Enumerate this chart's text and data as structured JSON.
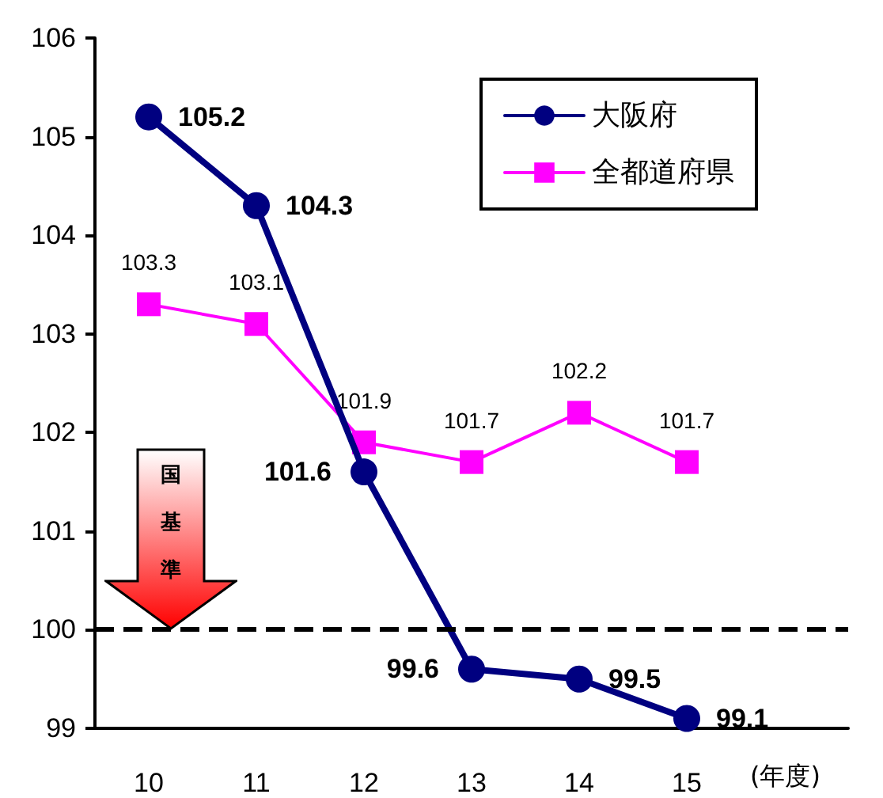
{
  "chart_data": {
    "type": "line",
    "categories": [
      "10",
      "11",
      "12",
      "13",
      "14",
      "15",
      null
    ],
    "xlabel": "(年度)",
    "series": [
      {
        "name": "大阪府",
        "color": "#000080",
        "marker": "circle",
        "values": [
          105.2,
          104.3,
          101.6,
          99.6,
          99.5,
          99.1,
          null
        ]
      },
      {
        "name": "全都道府県",
        "color": "#ff00ff",
        "marker": "square",
        "values": [
          103.3,
          103.1,
          101.9,
          101.7,
          102.2,
          101.7,
          null
        ]
      }
    ],
    "ylim": [
      99,
      106
    ],
    "yticks": [
      99,
      100,
      101,
      102,
      103,
      104,
      105,
      106
    ],
    "ref_lines": [
      {
        "axis": "y",
        "value": 100,
        "label": "国基準",
        "color": "#000000",
        "line_style": "dashed"
      }
    ],
    "data_labels": true,
    "grid": false,
    "legend": "top right"
  }
}
